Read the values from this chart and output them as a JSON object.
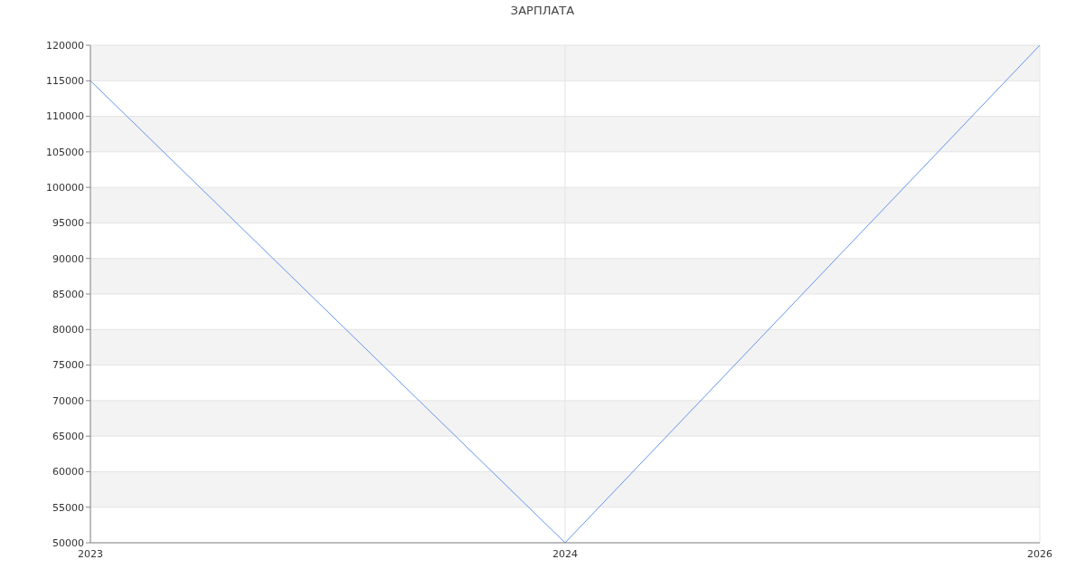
{
  "chart_data": {
    "type": "line",
    "title": "ЗАРПЛАТА",
    "categories": [
      "2023",
      "2024",
      "2026"
    ],
    "series": [
      {
        "color": "#6495ed",
        "values": [
          115000,
          50000,
          120000
        ]
      }
    ],
    "ylim": [
      50000,
      120000
    ],
    "yticks": [
      50000,
      55000,
      60000,
      65000,
      70000,
      75000,
      80000,
      85000,
      90000,
      95000,
      100000,
      105000,
      110000,
      115000,
      120000
    ],
    "grid": true
  }
}
